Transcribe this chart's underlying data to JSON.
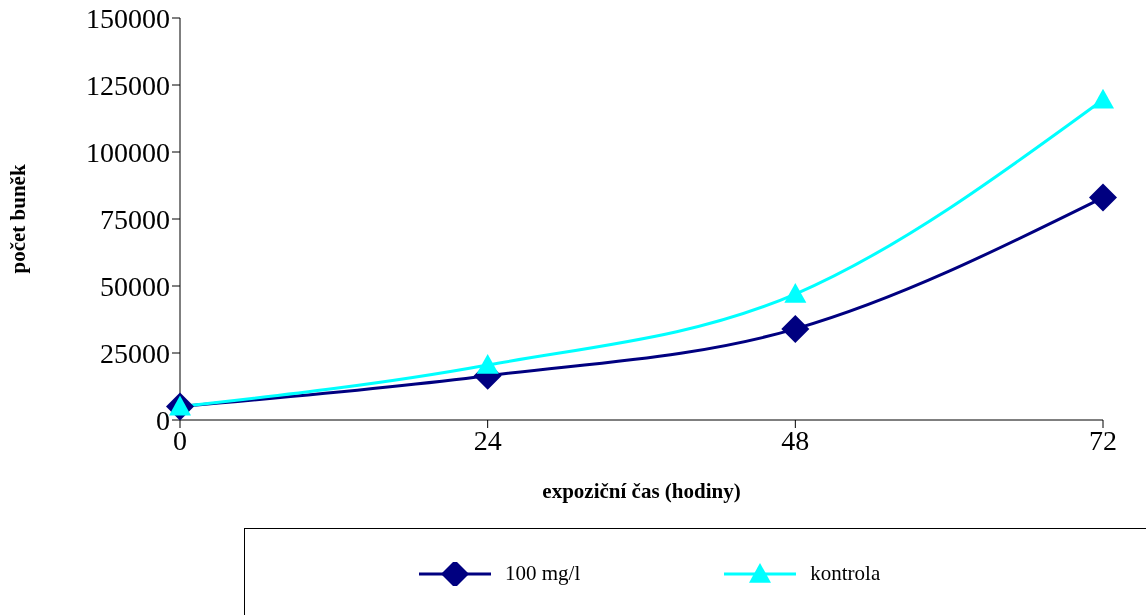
{
  "chart_data": {
    "type": "line",
    "xlabel": "expoziční čas (hodiny)",
    "ylabel": "počet buněk",
    "x": [
      0,
      24,
      48,
      72
    ],
    "series": [
      {
        "name": "100 mg/l",
        "color": "#000080",
        "marker": "diamond",
        "values": [
          5000,
          16500,
          34000,
          83000
        ]
      },
      {
        "name": "kontrola",
        "color": "#00ffff",
        "marker": "triangle",
        "values": [
          5000,
          20500,
          47000,
          119500
        ]
      }
    ],
    "xlim": [
      0,
      72
    ],
    "xticks": [
      0,
      24,
      48,
      72
    ],
    "ylim": [
      0,
      150000
    ],
    "yticks": [
      0,
      25000,
      50000,
      75000,
      100000,
      125000,
      150000
    ],
    "grid": false,
    "legend": "bottom"
  }
}
